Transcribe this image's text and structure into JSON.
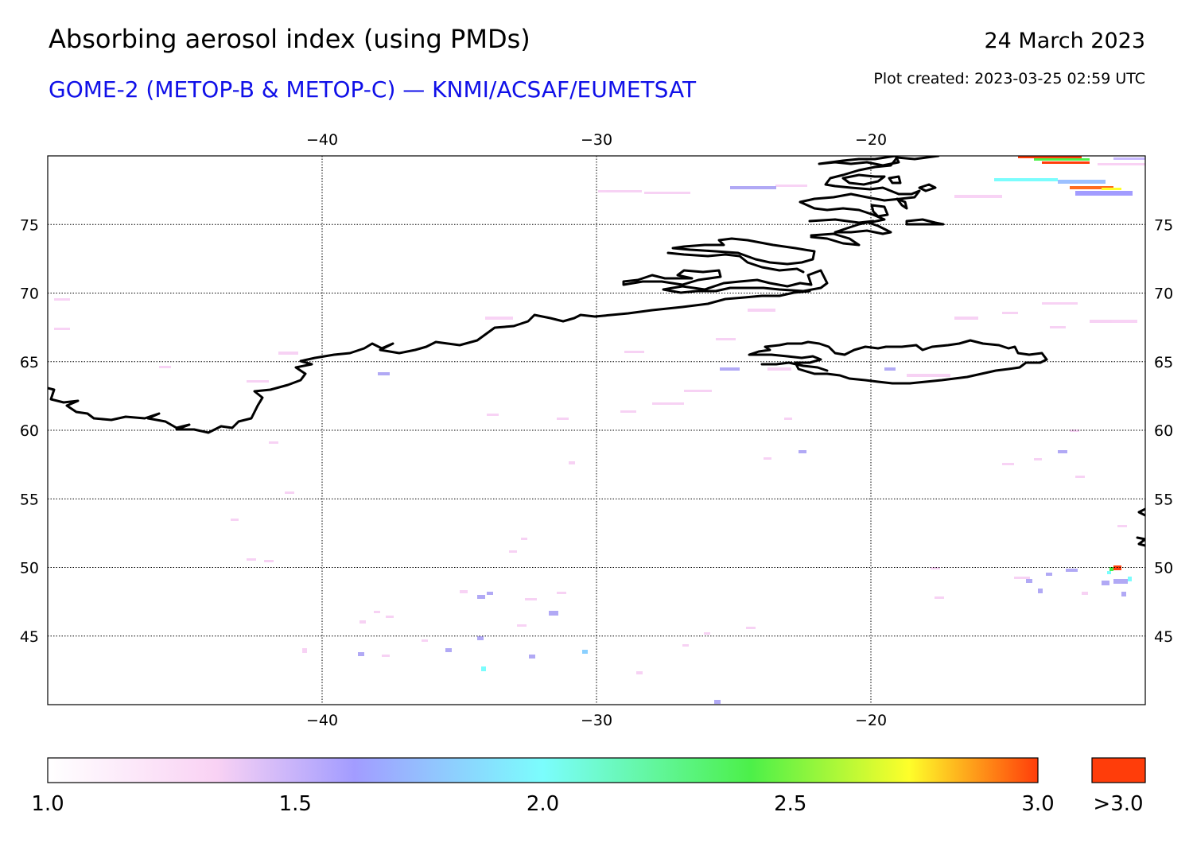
{
  "header": {
    "title": "Absorbing aerosol index (using PMDs)",
    "subtitle": "GOME-2 (METOP-B & METOP-C) — KNMI/ACSAF/EUMETSAT",
    "date": "24 March 2023",
    "created": "Plot created: 2023-03-25 02:59 UTC"
  },
  "map": {
    "lon_range": [
      -50,
      -10
    ],
    "lat_range": [
      40,
      80
    ],
    "lon_ticks": [
      "−40",
      "−30",
      "−20"
    ],
    "lon_tick_values": [
      -40,
      -30,
      -20
    ],
    "lat_ticks": [
      "75",
      "70",
      "65",
      "60",
      "55",
      "50",
      "45"
    ],
    "lat_tick_values": [
      75,
      70,
      65,
      60,
      55,
      50,
      45
    ],
    "grid": true,
    "coastline_color": "#000000"
  },
  "colorbar": {
    "ticks": [
      "1.0",
      "1.5",
      "2.0",
      "2.5",
      "3.0"
    ],
    "tick_values": [
      1.0,
      1.5,
      2.0,
      2.5,
      3.0
    ],
    "overflow_label": ">3.0",
    "overflow_color": "#ff3d0a",
    "stops": [
      "#ffffff",
      "#f9d2f4",
      "#a29cff",
      "#7bfdfd",
      "#4cf049",
      "#fefe2a",
      "#ff3d0a"
    ]
  },
  "chart_data": {
    "type": "heatmap",
    "title": "Absorbing aerosol index (using PMDs)",
    "x_range": [
      -50,
      -10
    ],
    "y_range": [
      40,
      80
    ],
    "value_range": [
      1.0,
      3.0
    ],
    "notable_cells": [
      {
        "lon": -13,
        "lat": 79.8,
        "value": 3.0
      },
      {
        "lon": -12,
        "lat": 77.5,
        "value": 3.0
      },
      {
        "lon": -14,
        "lat": 78.5,
        "value": 2.3
      },
      {
        "lon": -10.8,
        "lat": 50,
        "value": 3.0
      },
      {
        "lon": -11,
        "lat": 49,
        "value": 2.1
      },
      {
        "lon": -34,
        "lat": 43,
        "value": 2.0
      },
      {
        "lon": -32,
        "lat": 46,
        "value": 1.7
      },
      {
        "lon": -24,
        "lat": 64.5,
        "value": 1.6
      }
    ]
  }
}
